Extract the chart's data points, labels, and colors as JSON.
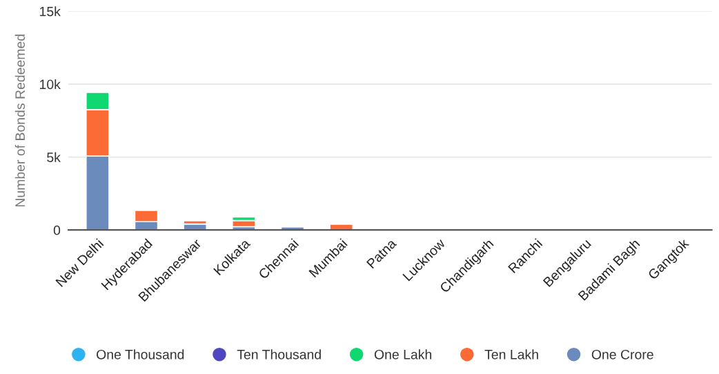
{
  "chart_data": {
    "type": "bar",
    "stacked": true,
    "ylabel": "Number of Bonds Redeemed",
    "categories": [
      "New Delhi",
      "Hyderabad",
      "Bhubaneswar",
      "Kolkata",
      "Chennai",
      "Mumbai",
      "Patna",
      "Lucknow",
      "Chandigarh",
      "Ranchi",
      "Bengaluru",
      "Badami Bagh",
      "Gangtok"
    ],
    "series": [
      {
        "name": "One Crore",
        "color": "#6b8bbd",
        "values": [
          5070,
          570,
          410,
          230,
          210,
          0,
          0,
          0,
          0,
          0,
          0,
          0,
          0
        ]
      },
      {
        "name": "Ten Lakh",
        "color": "#fc6a35",
        "values": [
          3180,
          780,
          230,
          420,
          0,
          400,
          0,
          0,
          0,
          0,
          0,
          0,
          0
        ]
      },
      {
        "name": "One Lakh",
        "color": "#0fd870",
        "values": [
          1180,
          0,
          0,
          240,
          0,
          0,
          0,
          0,
          0,
          0,
          0,
          0,
          0
        ]
      },
      {
        "name": "Ten Thousand",
        "color": "#5046c0",
        "values": [
          0,
          0,
          0,
          0,
          0,
          0,
          0,
          0,
          0,
          0,
          0,
          0,
          0
        ]
      },
      {
        "name": "One Thousand",
        "color": "#2eb2f2",
        "values": [
          0,
          0,
          0,
          0,
          0,
          0,
          0,
          0,
          0,
          0,
          0,
          0,
          0
        ]
      }
    ],
    "ylim": [
      0,
      15000
    ],
    "yticks": [
      0,
      {
        "value": 5000,
        "label": "5k"
      },
      {
        "value": 10000,
        "label": "10k"
      },
      {
        "value": 15000,
        "label": "15k"
      }
    ],
    "grid": "y",
    "legend": "bottom"
  }
}
